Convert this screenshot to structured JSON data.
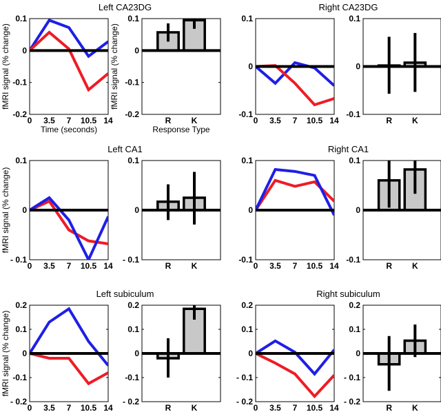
{
  "chart_data": [
    {
      "type": "line",
      "title": "Left CA23DG",
      "xlabel": "Time (seconds)",
      "ylabel": "fMRI signal (% change)",
      "x": [
        0,
        3.5,
        7,
        10.5,
        14
      ],
      "xtick_labels": [
        "0",
        "3.5",
        "7",
        "10.5",
        "14"
      ],
      "ylim": [
        -0.2,
        0.1
      ],
      "yticks": [
        -0.2,
        -0.1,
        0,
        0.1
      ],
      "ytick_labels": [
        "-0.2",
        "-0.1",
        "0",
        "0.1"
      ],
      "series": [
        {
          "name": "blue",
          "color": "#1f1fe6",
          "values": [
            0,
            0.095,
            0.072,
            -0.018,
            0.028
          ]
        },
        {
          "name": "red",
          "color": "#ee1c25",
          "values": [
            0,
            0.057,
            0.005,
            -0.123,
            -0.072
          ]
        }
      ],
      "bars": {
        "xlabel": "Response Type",
        "ylabel": "fMRI signal (% change)",
        "categories": [
          "R",
          "K"
        ],
        "values": [
          0.057,
          0.095
        ],
        "err_low": [
          0.028,
          0.068
        ],
        "err_high": [
          0.085,
          0.13
        ]
      }
    },
    {
      "type": "line",
      "title": "Right CA23DG",
      "xlabel": "",
      "ylabel": "",
      "x": [
        0,
        3.5,
        7,
        10.5,
        14
      ],
      "xtick_labels": [
        "0",
        "3.5",
        "7",
        "10.5",
        "14"
      ],
      "ylim": [
        -0.1,
        0.1
      ],
      "yticks": [
        -0.1,
        0,
        0.1
      ],
      "ytick_labels": [
        "-0.1",
        "0",
        "0.1"
      ],
      "series": [
        {
          "name": "blue",
          "color": "#1f1fe6",
          "values": [
            0,
            -0.035,
            0.008,
            -0.003,
            -0.04
          ]
        },
        {
          "name": "red",
          "color": "#ee1c25",
          "values": [
            0,
            0.002,
            -0.035,
            -0.08,
            -0.067
          ]
        }
      ],
      "bars": {
        "xlabel": "",
        "ylabel": "",
        "categories": [
          "R",
          "K"
        ],
        "values": [
          0.002,
          0.008
        ],
        "err_low": [
          -0.057,
          -0.053
        ],
        "err_high": [
          0.062,
          0.07
        ]
      }
    },
    {
      "type": "line",
      "title": "Left CA1",
      "xlabel": "",
      "ylabel": "fMRI signal (% change)",
      "x": [
        0,
        3.5,
        7,
        10.5,
        14
      ],
      "xtick_labels": [
        "0",
        "3.5",
        "7",
        "10.5",
        "14"
      ],
      "ylim": [
        -0.1,
        0.1
      ],
      "yticks": [
        -0.1,
        0,
        0.1
      ],
      "ytick_labels": [
        "- 0.1",
        "0",
        "0.1"
      ],
      "series": [
        {
          "name": "red",
          "color": "#ee1c25",
          "values": [
            0,
            0.018,
            -0.04,
            -0.062,
            -0.068
          ]
        },
        {
          "name": "blue",
          "color": "#1f1fe6",
          "values": [
            0,
            0.025,
            -0.02,
            -0.1,
            -0.013
          ]
        }
      ],
      "bars": {
        "xlabel": "",
        "ylabel": "",
        "categories": [
          "R",
          "K"
        ],
        "values": [
          0.017,
          0.025
        ],
        "err_low": [
          -0.02,
          -0.029
        ],
        "err_high": [
          0.052,
          0.077
        ]
      }
    },
    {
      "type": "line",
      "title": "Right CA1",
      "xlabel": "",
      "ylabel": "",
      "x": [
        0,
        3.5,
        7,
        10.5,
        14
      ],
      "xtick_labels": [
        "0",
        "3.5",
        "7",
        "10.5",
        "14"
      ],
      "ylim": [
        -0.1,
        0.1
      ],
      "yticks": [
        -0.1,
        0,
        0.1
      ],
      "ytick_labels": [
        "-0.1",
        "0",
        "0.1"
      ],
      "series": [
        {
          "name": "red",
          "color": "#ee1c25",
          "values": [
            0,
            0.06,
            0.048,
            0.057,
            0.018
          ]
        },
        {
          "name": "blue",
          "color": "#1f1fe6",
          "values": [
            0,
            0.082,
            0.078,
            0.07,
            -0.01
          ]
        }
      ],
      "bars": {
        "xlabel": "",
        "ylabel": "",
        "categories": [
          "R",
          "K"
        ],
        "values": [
          0.06,
          0.082
        ],
        "err_low": [
          0.005,
          0.033
        ],
        "err_high": [
          0.115,
          0.13
        ]
      }
    },
    {
      "type": "line",
      "title": "Left subiculum",
      "xlabel": "",
      "ylabel": "fMRI signal (% change)",
      "x": [
        0,
        3.5,
        7,
        10.5,
        14
      ],
      "xtick_labels": [
        "0",
        "3.5",
        "7",
        "10.5",
        "14"
      ],
      "ylim": [
        -0.2,
        0.2
      ],
      "yticks": [
        -0.2,
        -0.1,
        0,
        0.1,
        0.2
      ],
      "ytick_labels": [
        "- 0.2",
        "-0.1",
        "0",
        "0.1",
        "0.2"
      ],
      "series": [
        {
          "name": "blue",
          "color": "#1f1fe6",
          "values": [
            0,
            0.13,
            0.185,
            0.05,
            -0.05
          ]
        },
        {
          "name": "red",
          "color": "#ee1c25",
          "values": [
            0,
            -0.02,
            -0.02,
            -0.125,
            -0.08
          ]
        }
      ],
      "bars": {
        "xlabel": "",
        "ylabel": "",
        "categories": [
          "R",
          "K"
        ],
        "values": [
          -0.02,
          0.185
        ],
        "err_low": [
          -0.1,
          0.14
        ],
        "err_high": [
          0.063,
          0.23
        ]
      }
    },
    {
      "type": "line",
      "title": "Right subiculum",
      "xlabel": "",
      "ylabel": "",
      "x": [
        0,
        3.5,
        7,
        10.5,
        14
      ],
      "xtick_labels": [
        "0",
        "3.5",
        "7",
        "10.5",
        "14"
      ],
      "ylim": [
        -0.2,
        0.2
      ],
      "yticks": [
        -0.2,
        -0.1,
        0,
        0.1,
        0.2
      ],
      "ytick_labels": [
        "- 0.2",
        "- 0.1",
        "0",
        "0.1",
        "0.2"
      ],
      "series": [
        {
          "name": "blue",
          "color": "#1f1fe6",
          "values": [
            0,
            0.052,
            0.005,
            -0.085,
            0.015
          ]
        },
        {
          "name": "red",
          "color": "#ee1c25",
          "values": [
            0,
            -0.04,
            -0.085,
            -0.178,
            -0.09
          ]
        }
      ],
      "bars": {
        "xlabel": "",
        "ylabel": "",
        "categories": [
          "R",
          "K"
        ],
        "values": [
          -0.045,
          0.053
        ],
        "err_low": [
          -0.155,
          -0.015
        ],
        "err_high": [
          0.072,
          0.12
        ]
      }
    }
  ]
}
